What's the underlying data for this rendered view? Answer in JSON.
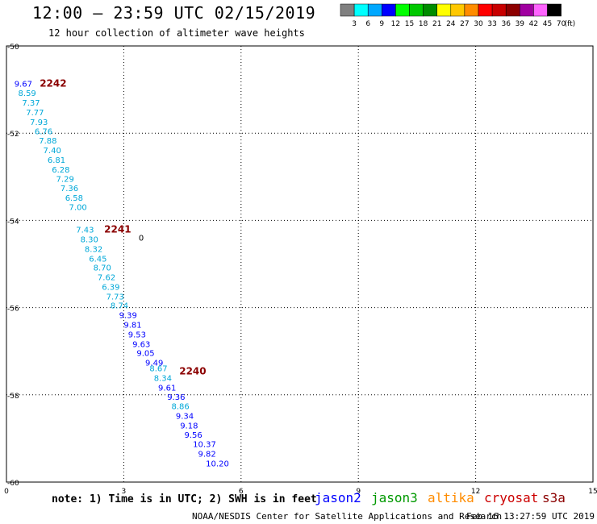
{
  "header": {
    "title": "12:00 – 23:59 UTC 02/15/2019",
    "subtitle": "12 hour collection of altimeter wave heights"
  },
  "legend": {
    "unit": "(ft)",
    "swatches": [
      {
        "color": "#808080",
        "label": "3"
      },
      {
        "color": "#00ffff",
        "label": "6"
      },
      {
        "color": "#00a8ff",
        "label": "9"
      },
      {
        "color": "#0000ff",
        "label": "12"
      },
      {
        "color": "#00ff00",
        "label": "15"
      },
      {
        "color": "#00c800",
        "label": "18"
      },
      {
        "color": "#008c00",
        "label": "21"
      },
      {
        "color": "#ffff00",
        "label": "24"
      },
      {
        "color": "#ffc800",
        "label": "27"
      },
      {
        "color": "#ff8c00",
        "label": "30"
      },
      {
        "color": "#ff0000",
        "label": "33"
      },
      {
        "color": "#c80000",
        "label": "36"
      },
      {
        "color": "#8c0000",
        "label": "39"
      },
      {
        "color": "#a000a0",
        "label": "42"
      },
      {
        "color": "#ff64ff",
        "label": "45"
      },
      {
        "color": "#000000",
        "label": "70"
      }
    ]
  },
  "chart_data": {
    "type": "scatter",
    "xlim": [
      0,
      15
    ],
    "ylim": [
      -60,
      -50
    ],
    "xticks": [
      0,
      3,
      6,
      9,
      12,
      15
    ],
    "yticks": [
      -50,
      -52,
      -54,
      -56,
      -58,
      -60
    ],
    "grid": true,
    "colors": {
      "light": "#00a8d8",
      "dark": "#0000ff",
      "time": "#8b0000"
    },
    "points": [
      {
        "x": 0.2,
        "y": -50.93,
        "label": "9.67",
        "c": "dark"
      },
      {
        "x": 0.3,
        "y": -51.15,
        "label": "8.59",
        "c": "light"
      },
      {
        "x": 0.4,
        "y": -51.37,
        "label": "7.37",
        "c": "light"
      },
      {
        "x": 0.5,
        "y": -51.59,
        "label": "7.77",
        "c": "light"
      },
      {
        "x": 0.6,
        "y": -51.81,
        "label": "7.93",
        "c": "light"
      },
      {
        "x": 0.72,
        "y": -52.02,
        "label": "6.76",
        "c": "light"
      },
      {
        "x": 0.83,
        "y": -52.24,
        "label": "7.88",
        "c": "light"
      },
      {
        "x": 0.94,
        "y": -52.46,
        "label": "7.40",
        "c": "light"
      },
      {
        "x": 1.05,
        "y": -52.68,
        "label": "6.81",
        "c": "light"
      },
      {
        "x": 1.16,
        "y": -52.9,
        "label": "6.28",
        "c": "light"
      },
      {
        "x": 1.27,
        "y": -53.11,
        "label": "7.29",
        "c": "light"
      },
      {
        "x": 1.38,
        "y": -53.33,
        "label": "7.36",
        "c": "light"
      },
      {
        "x": 1.5,
        "y": -53.55,
        "label": "6.58",
        "c": "light"
      },
      {
        "x": 1.6,
        "y": -53.76,
        "label": "7.00",
        "c": "light"
      },
      {
        "x": 1.78,
        "y": -54.28,
        "label": "7.43",
        "c": "light"
      },
      {
        "x": 1.89,
        "y": -54.5,
        "label": "8.30",
        "c": "light"
      },
      {
        "x": 2.0,
        "y": -54.72,
        "label": "8.32",
        "c": "light"
      },
      {
        "x": 2.11,
        "y": -54.94,
        "label": "6.45",
        "c": "light"
      },
      {
        "x": 2.22,
        "y": -55.15,
        "label": "8.70",
        "c": "light"
      },
      {
        "x": 2.33,
        "y": -55.37,
        "label": "7.62",
        "c": "light"
      },
      {
        "x": 2.44,
        "y": -55.59,
        "label": "6.39",
        "c": "light"
      },
      {
        "x": 2.55,
        "y": -55.81,
        "label": "7.73",
        "c": "light"
      },
      {
        "x": 2.66,
        "y": -56.02,
        "label": "8.74",
        "c": "light"
      },
      {
        "x": 2.88,
        "y": -56.24,
        "label": "9.39",
        "c": "dark"
      },
      {
        "x": 3.0,
        "y": -56.46,
        "label": "9.81",
        "c": "dark"
      },
      {
        "x": 3.11,
        "y": -56.68,
        "label": "9.53",
        "c": "dark"
      },
      {
        "x": 3.22,
        "y": -56.9,
        "label": "9.63",
        "c": "dark"
      },
      {
        "x": 3.33,
        "y": -57.11,
        "label": "9.05",
        "c": "dark"
      },
      {
        "x": 3.55,
        "y": -57.33,
        "label": "9.49",
        "c": "dark"
      },
      {
        "x": 3.66,
        "y": -57.46,
        "label": "8.67",
        "c": "light"
      },
      {
        "x": 3.77,
        "y": -57.68,
        "label": "8.34",
        "c": "light"
      },
      {
        "x": 3.88,
        "y": -57.9,
        "label": "9.61",
        "c": "dark"
      },
      {
        "x": 4.11,
        "y": -58.11,
        "label": "9.36",
        "c": "dark"
      },
      {
        "x": 4.22,
        "y": -58.33,
        "label": "8.86",
        "c": "light"
      },
      {
        "x": 4.33,
        "y": -58.55,
        "label": "9.34",
        "c": "dark"
      },
      {
        "x": 4.44,
        "y": -58.77,
        "label": "9.18",
        "c": "dark"
      },
      {
        "x": 4.55,
        "y": -58.98,
        "label": "9.56",
        "c": "dark"
      },
      {
        "x": 4.77,
        "y": -59.2,
        "label": "10.37",
        "c": "dark"
      },
      {
        "x": 4.9,
        "y": -59.42,
        "label": "9.82",
        "c": "dark"
      },
      {
        "x": 5.1,
        "y": -59.64,
        "label": "10.20",
        "c": "dark"
      }
    ],
    "time_labels": [
      {
        "x": 0.85,
        "y": -50.93,
        "label": "2242"
      },
      {
        "x": 2.5,
        "y": -54.28,
        "label": "2241"
      },
      {
        "x": 4.42,
        "y": -57.53,
        "label": "2240"
      }
    ],
    "markers": [
      {
        "x": 3.38,
        "y": -54.46,
        "label": "0"
      }
    ]
  },
  "note": "note: 1) Time is in UTC; 2) SWH is in feet",
  "satellites": [
    {
      "name": "jason2",
      "color": "#0000ff"
    },
    {
      "name": "jason3",
      "color": "#009900"
    },
    {
      "name": "altika",
      "color": "#ff8c00"
    },
    {
      "name": "cryosat",
      "color": "#cc0000"
    },
    {
      "name": "s3a",
      "color": "#8b0000"
    }
  ],
  "footer": {
    "org": "NOAA/NESDIS Center for Satellite Applications and Research",
    "timestamp": "Feb 16 13:27:59 UTC 2019"
  }
}
